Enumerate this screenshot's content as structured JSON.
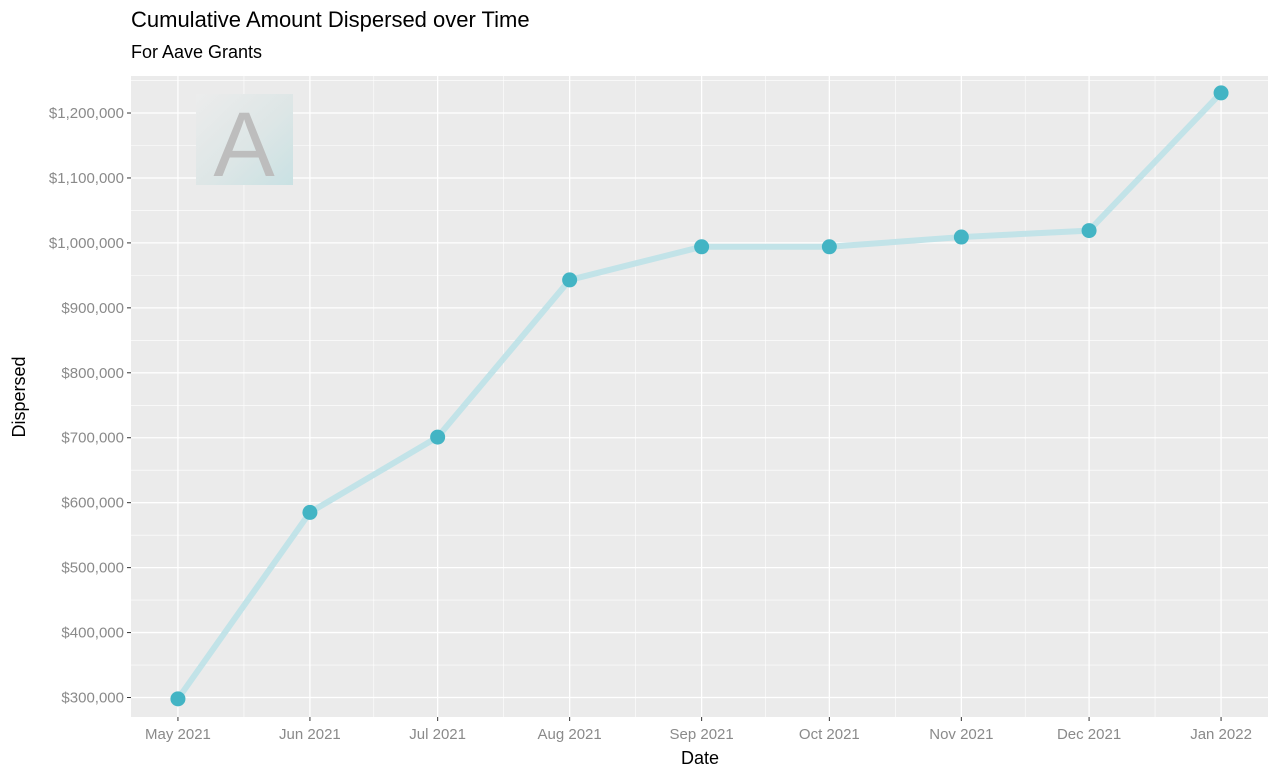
{
  "chart_data": {
    "type": "line",
    "title": "Cumulative Amount Dispersed over Time",
    "subtitle": "For Aave Grants",
    "xlabel": "Date",
    "ylabel": "Dispersed",
    "x": [
      "2021-05-01",
      "2021-06-01",
      "2021-07-01",
      "2021-08-01",
      "2021-09-01",
      "2021-10-01",
      "2021-11-01",
      "2021-12-01",
      "2022-01-01"
    ],
    "x_tick_labels": [
      "May 2021",
      "Jun 2021",
      "Jul 2021",
      "Aug 2021",
      "Sep 2021",
      "Oct 2021",
      "Nov 2021",
      "Dec 2021",
      "Jan 2022"
    ],
    "series": [
      {
        "values": [
          298000,
          585000,
          701000,
          943000,
          994000,
          994000,
          1009000,
          1019000,
          1231000
        ]
      }
    ],
    "ylim": [
      270000,
      1257000
    ],
    "y_ticks": [
      300000,
      400000,
      500000,
      600000,
      700000,
      800000,
      900000,
      1000000,
      1100000,
      1200000
    ],
    "y_tick_labels": [
      "$300,000",
      "$400,000",
      "$500,000",
      "$600,000",
      "$700,000",
      "$800,000",
      "$900,000",
      "$1,000,000",
      "$1,100,000",
      "$1,200,000"
    ],
    "grid": true,
    "legend": "none",
    "colors": {
      "panel_background": "#EBEBEB",
      "grid": "#FFFFFF",
      "line": "#C2E3E8",
      "point": "#43B4C4",
      "tick_label": "#8A8A8A",
      "logo_letter": "#BDBDBD"
    },
    "logo": {
      "letter": "A",
      "icon": "aave-logo"
    }
  }
}
